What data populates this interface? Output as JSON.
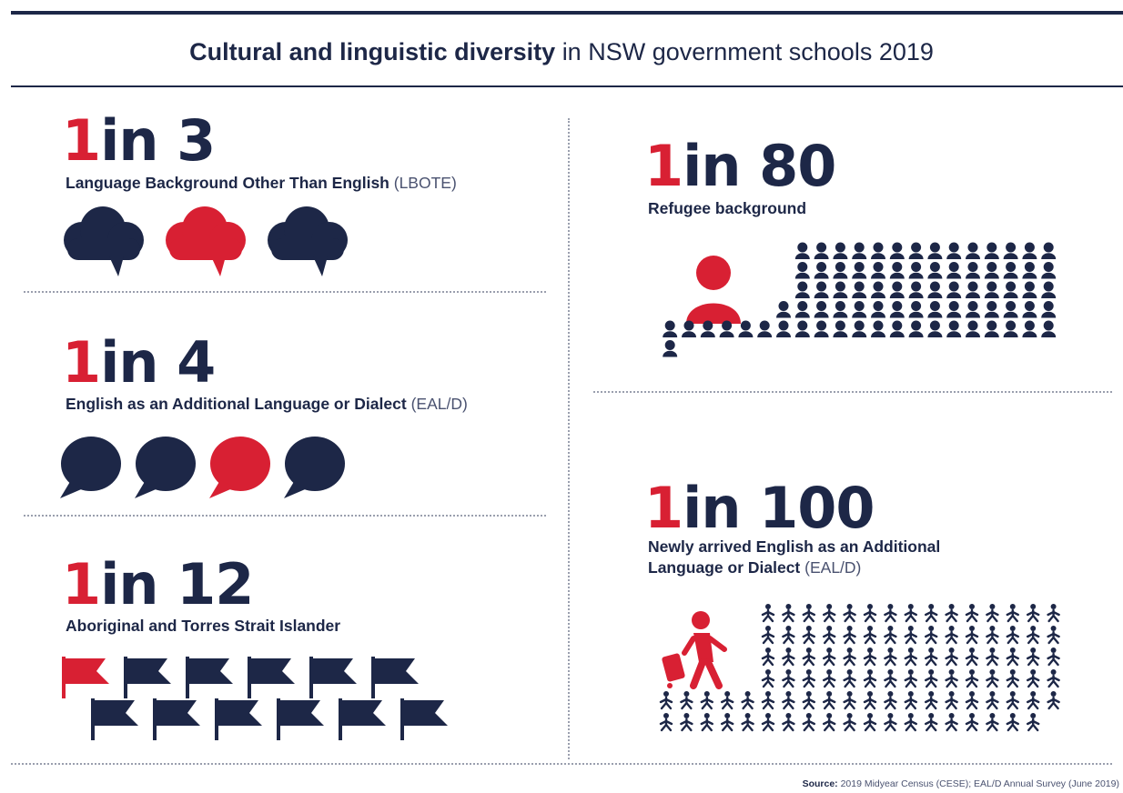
{
  "header": {
    "title_bold": "Cultural and linguistic diversity",
    "title_rest": "in NSW government schools 2019"
  },
  "stats": {
    "lbote": {
      "one": "1",
      "rest": "in 3",
      "label": "Language Background Other Than English",
      "abbr": "(LBOTE)",
      "icon": "cloud-speech-bubble-icon",
      "total": 3,
      "highlight_index": 1
    },
    "eald": {
      "one": "1",
      "rest": "in 4",
      "label": "English as an Additional Language or Dialect",
      "abbr": "(EAL/D)",
      "icon": "round-speech-bubble-icon",
      "total": 4,
      "highlight_index": 2
    },
    "aboriginal": {
      "one": "1",
      "rest": "in 12",
      "label": "Aboriginal and Torres Strait Islander",
      "abbr": "",
      "icon": "flag-icon",
      "total": 12,
      "highlight_index": 0
    },
    "refugee": {
      "one": "1",
      "rest": "in 80",
      "label": "Refugee background",
      "abbr": "",
      "icon": "person-icon",
      "total": 80,
      "highlight_index": 0
    },
    "newly_arrived": {
      "one": "1",
      "rest": "in 100",
      "label_line1": "Newly arrived English as an Additional",
      "label_line2": "Language or Dialect",
      "abbr": "(EAL/D)",
      "icon": "walking-traveller-icon",
      "total": 100,
      "highlight_index": 0
    }
  },
  "colors": {
    "navy": "#1d2747",
    "red": "#d82033",
    "divider": "#9a9fae"
  },
  "footer": {
    "source_label": "Source:",
    "source_text": "2019 Midyear Census (CESE);  EAL/D Annual Survey (June 2019)"
  }
}
